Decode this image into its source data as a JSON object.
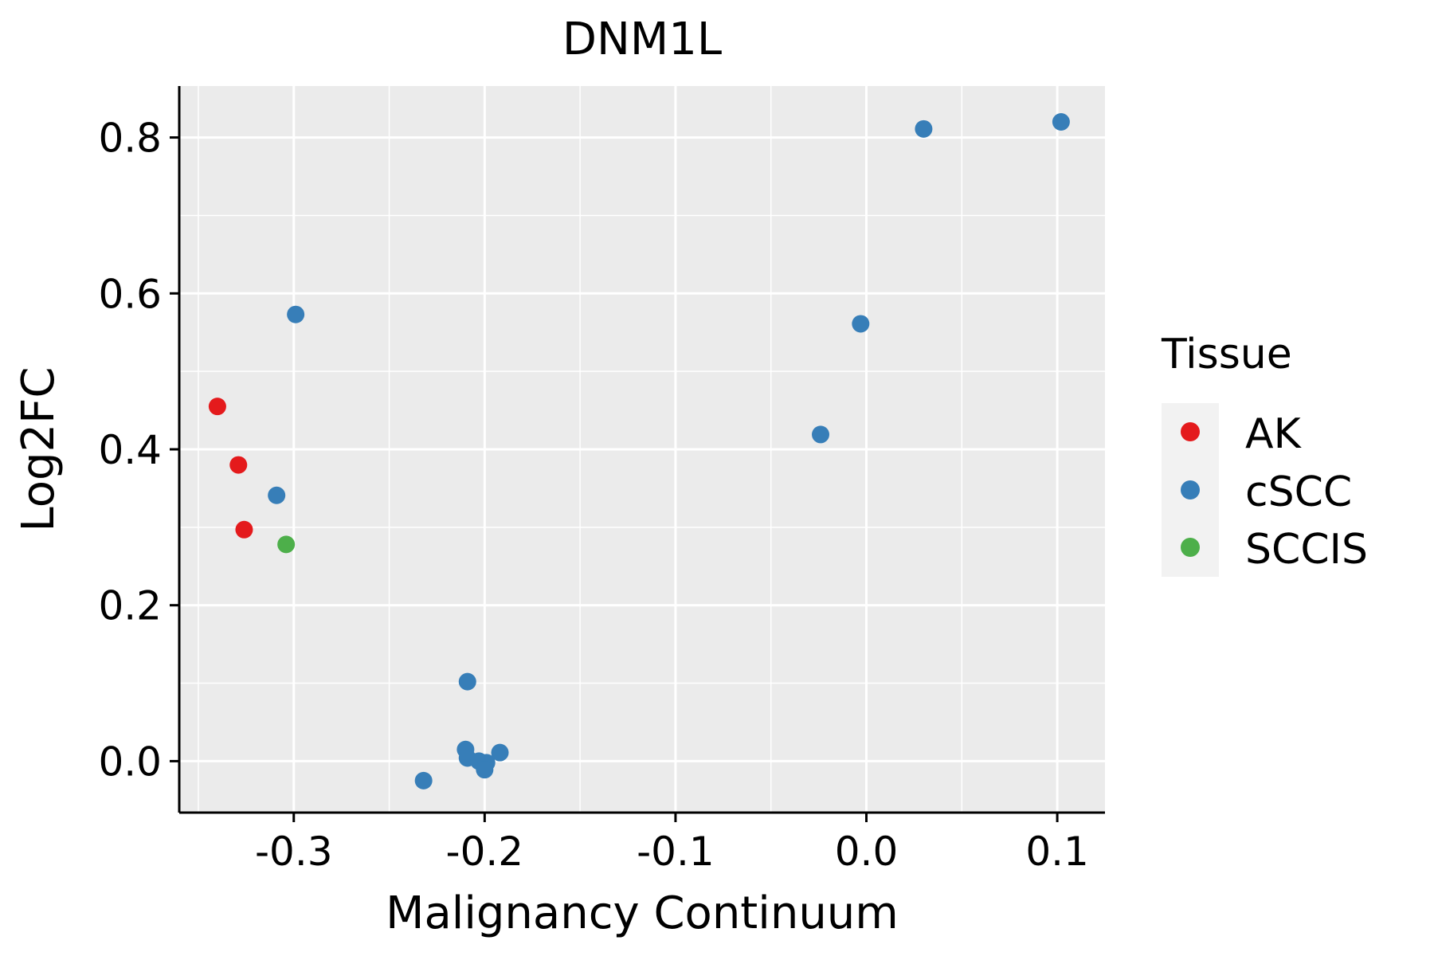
{
  "chart_data": {
    "type": "scatter",
    "title": "DNM1L",
    "xlabel": "Malignancy Continuum",
    "ylabel": "Log2FC",
    "xlim": [
      -0.36,
      0.125
    ],
    "ylim": [
      -0.066,
      0.866
    ],
    "x_ticks": [
      -0.3,
      -0.2,
      -0.1,
      0.0,
      0.1
    ],
    "x_tick_labels": [
      "-0.3",
      "-0.2",
      "-0.1",
      "0.0",
      "0.1"
    ],
    "y_ticks": [
      0.0,
      0.2,
      0.4,
      0.6,
      0.8
    ],
    "y_tick_labels": [
      "0.0",
      "0.2",
      "0.4",
      "0.6",
      "0.8"
    ],
    "grid": true,
    "legend": {
      "title": "Tissue",
      "position": "right",
      "entries": [
        {
          "name": "AK",
          "color": "#E41A1C"
        },
        {
          "name": "cSCC",
          "color": "#377EB8"
        },
        {
          "name": "SCCIS",
          "color": "#4DAF4A"
        }
      ]
    },
    "series": [
      {
        "name": "AK",
        "color": "#E41A1C",
        "points": [
          {
            "x": -0.34,
            "y": 0.455
          },
          {
            "x": -0.329,
            "y": 0.38
          },
          {
            "x": -0.326,
            "y": 0.297
          }
        ]
      },
      {
        "name": "cSCC",
        "color": "#377EB8",
        "points": [
          {
            "x": -0.299,
            "y": 0.573
          },
          {
            "x": -0.309,
            "y": 0.341
          },
          {
            "x": -0.209,
            "y": 0.102
          },
          {
            "x": -0.21,
            "y": 0.015
          },
          {
            "x": -0.209,
            "y": 0.004
          },
          {
            "x": -0.203,
            "y": 0.0
          },
          {
            "x": -0.199,
            "y": -0.002
          },
          {
            "x": -0.2,
            "y": -0.011
          },
          {
            "x": -0.192,
            "y": 0.011
          },
          {
            "x": -0.232,
            "y": -0.025
          },
          {
            "x": -0.024,
            "y": 0.419
          },
          {
            "x": -0.003,
            "y": 0.561
          },
          {
            "x": 0.03,
            "y": 0.811
          },
          {
            "x": 0.102,
            "y": 0.82
          }
        ]
      },
      {
        "name": "SCCIS",
        "color": "#4DAF4A",
        "points": [
          {
            "x": -0.304,
            "y": 0.278
          }
        ]
      }
    ]
  }
}
